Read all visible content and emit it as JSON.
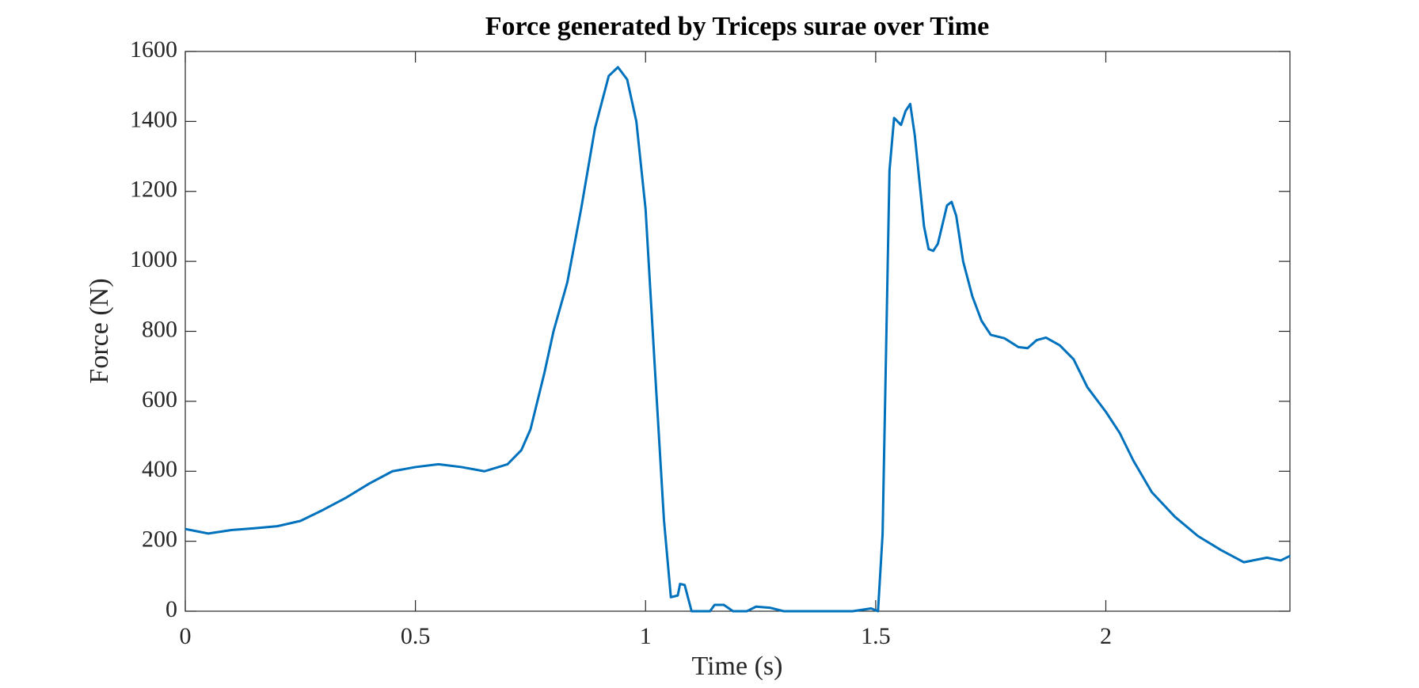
{
  "chart_data": {
    "type": "line",
    "title": "Force generated by Triceps surae over Time",
    "x_label": "Time (s)",
    "y_label": "Force (N)",
    "xlim": [
      0,
      2.4
    ],
    "ylim": [
      0,
      1600
    ],
    "xticks": [
      0,
      0.5,
      1,
      1.5,
      2
    ],
    "yticks": [
      0,
      200,
      400,
      600,
      800,
      1000,
      1200,
      1400,
      1600
    ],
    "grid": false,
    "series": [
      {
        "name": "Force",
        "color": "#0072bd",
        "x": [
          0,
          0.05,
          0.1,
          0.15,
          0.2,
          0.25,
          0.3,
          0.35,
          0.4,
          0.45,
          0.5,
          0.55,
          0.6,
          0.65,
          0.7,
          0.73,
          0.75,
          0.78,
          0.8,
          0.83,
          0.86,
          0.89,
          0.92,
          0.94,
          0.96,
          0.98,
          1.0,
          1.02,
          1.04,
          1.055,
          1.07,
          1.075,
          1.085,
          1.1,
          1.14,
          1.15,
          1.17,
          1.19,
          1.22,
          1.24,
          1.27,
          1.3,
          1.45,
          1.49,
          1.505,
          1.515,
          1.53,
          1.54,
          1.555,
          1.565,
          1.575,
          1.585,
          1.605,
          1.615,
          1.625,
          1.635,
          1.655,
          1.665,
          1.675,
          1.69,
          1.71,
          1.73,
          1.75,
          1.78,
          1.81,
          1.83,
          1.85,
          1.87,
          1.9,
          1.93,
          1.96,
          2.0,
          2.03,
          2.06,
          2.1,
          2.15,
          2.2,
          2.25,
          2.3,
          2.35,
          2.38,
          2.4
        ],
        "values": [
          235,
          222,
          232,
          237,
          243,
          258,
          290,
          325,
          365,
          400,
          412,
          420,
          412,
          400,
          420,
          460,
          520,
          680,
          800,
          940,
          1150,
          1380,
          1530,
          1555,
          1520,
          1400,
          1150,
          700,
          260,
          40,
          45,
          78,
          75,
          0,
          0,
          18,
          18,
          0,
          0,
          13,
          10,
          0,
          0,
          8,
          0,
          220,
          1260,
          1410,
          1390,
          1430,
          1450,
          1360,
          1100,
          1035,
          1030,
          1050,
          1160,
          1170,
          1130,
          1000,
          900,
          830,
          790,
          780,
          755,
          752,
          775,
          782,
          760,
          720,
          640,
          570,
          510,
          430,
          340,
          270,
          215,
          175,
          140,
          153,
          145,
          158
        ]
      }
    ]
  }
}
